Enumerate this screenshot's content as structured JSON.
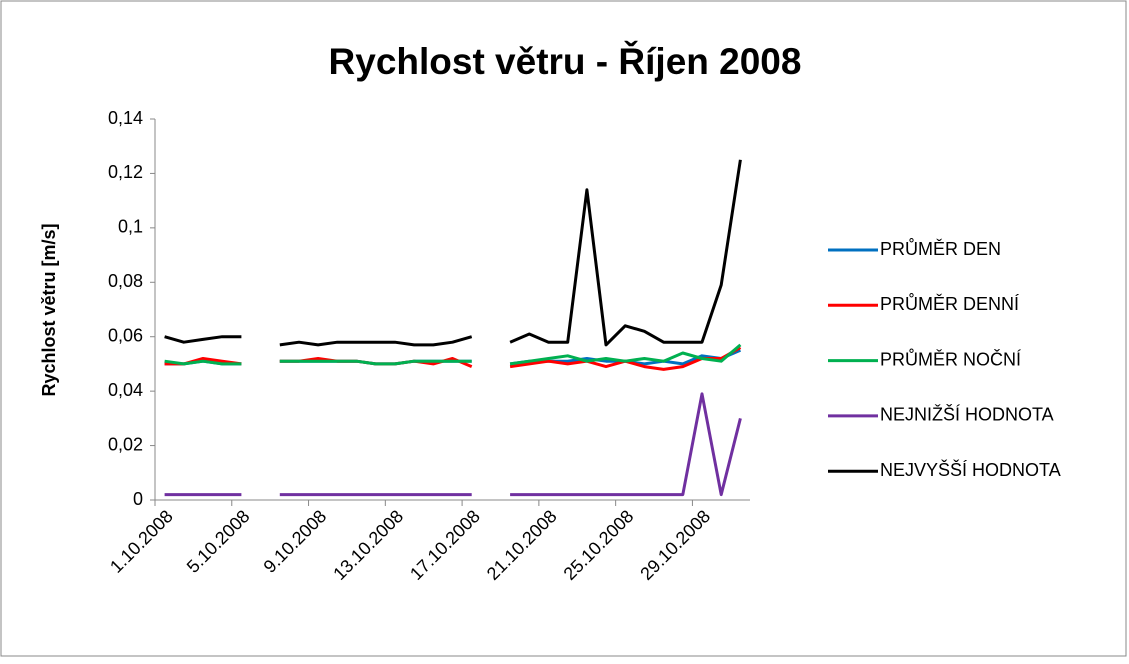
{
  "chart_data": {
    "type": "line",
    "title": "Rychlost větru - Říjen 2008",
    "y_label": "Rychlost větru [m/s]",
    "categories": [
      "1.10.2008",
      null,
      null,
      null,
      "5.10.2008",
      null,
      null,
      null,
      "9.10.2008",
      null,
      null,
      null,
      "13.10.2008",
      null,
      null,
      null,
      "17.10.2008",
      null,
      null,
      null,
      "21.10.2008",
      null,
      null,
      null,
      "25.10.2008",
      null,
      null,
      null,
      "29.10.2008",
      null,
      null
    ],
    "series": [
      {
        "name": "PRŮMĚR DEN",
        "color": "#0070c0",
        "values": [
          0.05,
          0.05,
          0.051,
          0.05,
          0.05,
          null,
          0.051,
          0.051,
          0.051,
          0.051,
          0.051,
          0.05,
          0.05,
          0.051,
          0.051,
          0.051,
          0.051,
          null,
          0.05,
          0.051,
          0.051,
          0.051,
          0.052,
          0.051,
          0.051,
          0.05,
          0.051,
          0.05,
          0.053,
          0.052,
          0.055
        ]
      },
      {
        "name": "PRŮMĚR DENNÍ",
        "color": "#ff0000",
        "values": [
          0.05,
          0.05,
          0.052,
          0.051,
          0.05,
          null,
          0.051,
          0.051,
          0.052,
          0.051,
          0.051,
          0.05,
          0.05,
          0.051,
          0.05,
          0.052,
          0.049,
          null,
          0.049,
          0.05,
          0.051,
          0.05,
          0.051,
          0.049,
          0.051,
          0.049,
          0.048,
          0.049,
          0.052,
          0.052,
          0.056
        ]
      },
      {
        "name": "PRŮMĚR NOČNÍ",
        "color": "#00b050",
        "values": [
          0.051,
          0.05,
          0.051,
          0.05,
          0.05,
          null,
          0.051,
          0.051,
          0.051,
          0.051,
          0.051,
          0.05,
          0.05,
          0.051,
          0.051,
          0.051,
          0.051,
          null,
          0.05,
          0.051,
          0.052,
          0.053,
          0.051,
          0.052,
          0.051,
          0.052,
          0.051,
          0.054,
          0.052,
          0.051,
          0.057
        ]
      },
      {
        "name": "NEJNIŽŠÍ HODNOTA",
        "color": "#7030a0",
        "values": [
          0.002,
          0.002,
          0.002,
          0.002,
          0.002,
          null,
          0.002,
          0.002,
          0.002,
          0.002,
          0.002,
          0.002,
          0.002,
          0.002,
          0.002,
          0.002,
          0.002,
          null,
          0.002,
          0.002,
          0.002,
          0.002,
          0.002,
          0.002,
          0.002,
          0.002,
          0.002,
          0.002,
          0.039,
          0.002,
          0.03
        ]
      },
      {
        "name": "NEJVYŠŠÍ HODNOTA",
        "color": "#000000",
        "values": [
          0.06,
          0.058,
          0.059,
          0.06,
          0.06,
          null,
          0.057,
          0.058,
          0.057,
          0.058,
          0.058,
          0.058,
          0.058,
          0.057,
          0.057,
          0.058,
          0.06,
          null,
          0.058,
          0.061,
          0.058,
          0.058,
          0.114,
          0.057,
          0.064,
          0.062,
          0.058,
          0.058,
          0.058,
          0.079,
          0.125
        ]
      }
    ],
    "ylim": [
      0,
      0.14
    ],
    "yticks": [
      0,
      {
        "value": 0.02,
        "label": "0,02"
      },
      {
        "value": 0.04,
        "label": "0,04"
      },
      {
        "value": 0.06,
        "label": "0,06"
      },
      {
        "value": 0.08,
        "label": "0,08"
      },
      {
        "value": 0.1,
        "label": "0,1"
      },
      {
        "value": 0.12,
        "label": "0,12"
      },
      {
        "value": 0.14,
        "label": "0,14"
      }
    ],
    "legend": "right"
  }
}
